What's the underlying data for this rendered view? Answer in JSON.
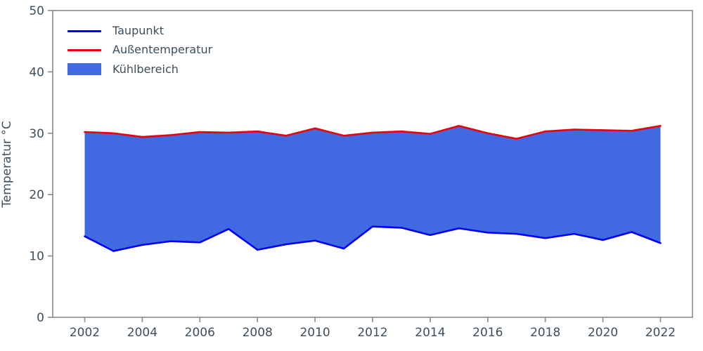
{
  "figure": {
    "background": "#ffffff",
    "axis_color": "#8a8a8a",
    "text_color": "#3d4f5c"
  },
  "legend": {
    "items": [
      {
        "label": "Taupunkt",
        "color": "#0000f5",
        "sample": "line"
      },
      {
        "label": "Außentemperatur",
        "color": "#e8000b",
        "sample": "line"
      },
      {
        "label": "Kühlbereich",
        "color": "#4169e1",
        "sample": "patch"
      }
    ]
  },
  "chart_data": {
    "type": "area",
    "title": "",
    "xlabel": "",
    "ylabel": "Temperatur °C",
    "x": [
      2002,
      2003,
      2004,
      2005,
      2006,
      2007,
      2008,
      2009,
      2010,
      2011,
      2012,
      2013,
      2014,
      2015,
      2016,
      2017,
      2018,
      2019,
      2020,
      2021,
      2022
    ],
    "series": [
      {
        "name": "Taupunkt",
        "color": "#0000f5",
        "values": [
          13.2,
          10.8,
          11.8,
          12.4,
          12.2,
          14.4,
          11.0,
          11.9,
          12.5,
          11.2,
          14.8,
          14.6,
          13.4,
          14.5,
          13.8,
          13.6,
          12.9,
          13.6,
          12.6,
          13.9,
          12.1
        ]
      },
      {
        "name": "Außentemperatur",
        "color": "#e8000b",
        "values": [
          30.2,
          30.0,
          29.4,
          29.7,
          30.2,
          30.1,
          30.3,
          29.6,
          30.8,
          29.6,
          30.1,
          30.3,
          29.9,
          31.2,
          30.0,
          29.1,
          30.3,
          30.6,
          30.5,
          30.4,
          31.2
        ]
      }
    ],
    "fill_between": {
      "name": "Kühlbereich",
      "color": "#4169e1",
      "lower_series": "Taupunkt",
      "upper_series": "Außentemperatur"
    },
    "ylim": [
      0,
      50
    ],
    "yticks": [
      0,
      10,
      20,
      30,
      40,
      50
    ],
    "xticks": [
      2002,
      2004,
      2006,
      2008,
      2010,
      2012,
      2014,
      2016,
      2018,
      2020,
      2022
    ],
    "grid": false,
    "legend_position": "upper-left"
  }
}
